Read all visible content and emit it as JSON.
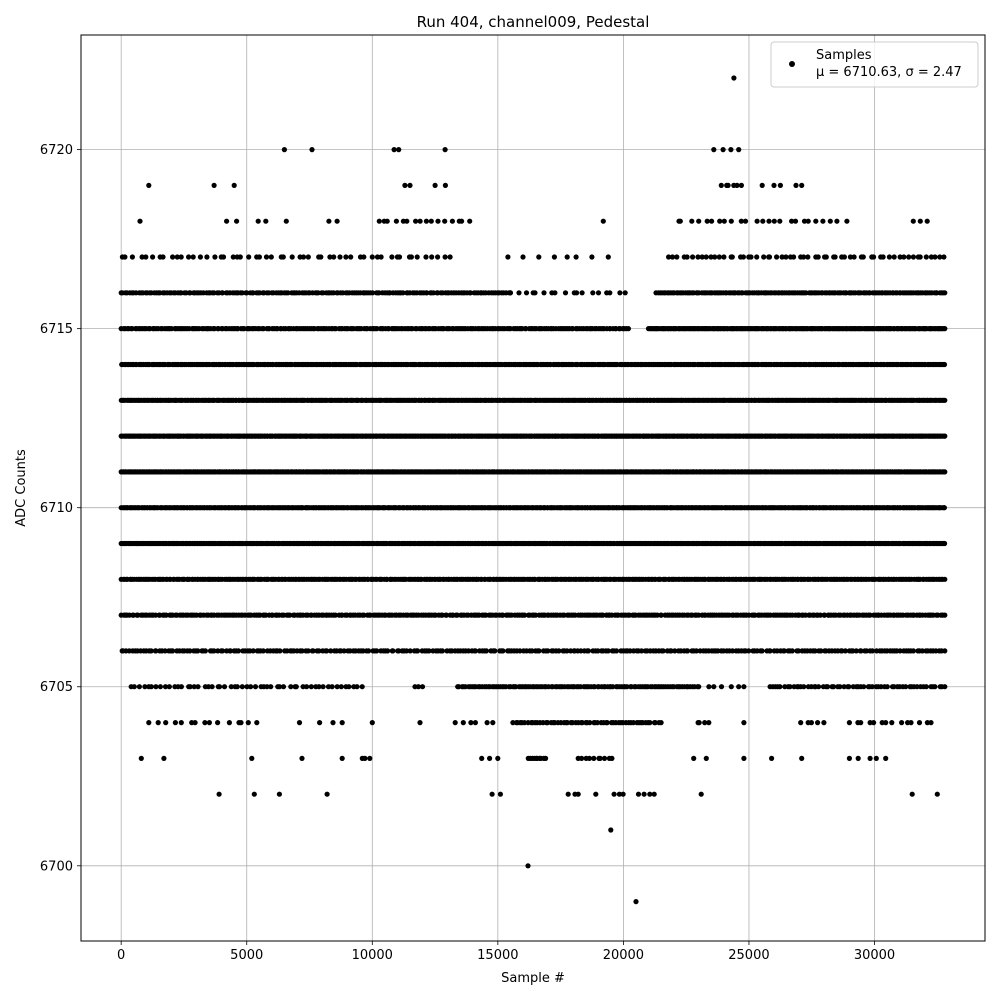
{
  "chart_data": {
    "type": "scatter",
    "title": "Run 404, channel009, Pedestal",
    "xlabel": "Sample #",
    "ylabel": "ADC Counts",
    "xlim": [
      -1600,
      34400
    ],
    "ylim": [
      6697.9,
      6723.2
    ],
    "xticks": [
      0,
      5000,
      10000,
      15000,
      20000,
      25000,
      30000
    ],
    "yticks": [
      6700,
      6705,
      6710,
      6715,
      6720
    ],
    "grid": true,
    "legend": {
      "placement": "top-right",
      "series_name": "Samples",
      "stats": "μ = 6710.63, σ = 2.47"
    },
    "marker_color": "#000000",
    "n_samples": 32768,
    "levels": [
      {
        "y": 6723,
        "runs": []
      },
      {
        "y": 6722,
        "runs": [
          [
            24400,
            24400,
            1
          ]
        ]
      },
      {
        "y": 6721,
        "runs": []
      },
      {
        "y": 6720,
        "runs": [
          [
            6500,
            6500,
            1
          ],
          [
            7600,
            7600,
            1
          ],
          [
            10850,
            11050,
            2
          ],
          [
            12900,
            12900,
            1
          ],
          [
            23600,
            24600,
            4
          ]
        ]
      },
      {
        "y": 6719,
        "runs": [
          [
            1100,
            1100,
            1
          ],
          [
            3700,
            4500,
            2
          ],
          [
            11300,
            11500,
            2
          ],
          [
            12500,
            13100,
            2
          ],
          [
            23900,
            24700,
            6
          ],
          [
            25500,
            27100,
            5
          ]
        ]
      },
      {
        "y": 6718,
        "runs": [
          [
            750,
            750,
            1
          ],
          [
            4200,
            6600,
            5
          ],
          [
            8200,
            8600,
            2
          ],
          [
            10200,
            13900,
            16
          ],
          [
            19200,
            19200,
            1
          ],
          [
            22100,
            28900,
            25
          ],
          [
            31500,
            32100,
            3
          ]
        ]
      },
      {
        "y": 6717,
        "runs": [
          [
            0,
            13100,
            55
          ],
          [
            15400,
            19400,
            8
          ],
          [
            21800,
            32800,
            60
          ]
        ]
      },
      {
        "y": 6716,
        "runs": [
          [
            0,
            15500,
            180
          ],
          [
            15500,
            20100,
            18
          ],
          [
            21300,
            32800,
            160
          ]
        ]
      },
      {
        "y": 6715,
        "runs": [
          [
            0,
            20200,
            260
          ],
          [
            21000,
            32800,
            220
          ]
        ]
      },
      {
        "y": 6714,
        "runs": [
          [
            0,
            32800,
            520
          ]
        ]
      },
      {
        "y": 6713,
        "runs": [
          [
            0,
            32800,
            600
          ]
        ]
      },
      {
        "y": 6712,
        "runs": [
          [
            0,
            32800,
            640
          ]
        ]
      },
      {
        "y": 6711,
        "runs": [
          [
            0,
            32800,
            600
          ]
        ]
      },
      {
        "y": 6710,
        "runs": [
          [
            0,
            32800,
            620
          ]
        ]
      },
      {
        "y": 6709,
        "runs": [
          [
            0,
            32800,
            580
          ]
        ]
      },
      {
        "y": 6708,
        "runs": [
          [
            0,
            32800,
            480
          ]
        ]
      },
      {
        "y": 6707,
        "runs": [
          [
            0,
            32800,
            380
          ]
        ]
      },
      {
        "y": 6706,
        "runs": [
          [
            0,
            32800,
            300
          ]
        ]
      },
      {
        "y": 6705,
        "runs": [
          [
            400,
            9600,
            55
          ],
          [
            11700,
            12000,
            3
          ],
          [
            13400,
            23000,
            120
          ],
          [
            23400,
            24800,
            6
          ],
          [
            25800,
            32800,
            60
          ]
        ]
      },
      {
        "y": 6704,
        "runs": [
          [
            1100,
            5200,
            14
          ],
          [
            5400,
            5400,
            1
          ],
          [
            7100,
            8800,
            4
          ],
          [
            10000,
            10000,
            1
          ],
          [
            11900,
            11900,
            1
          ],
          [
            13300,
            14800,
            6
          ],
          [
            15600,
            21500,
            60
          ],
          [
            22900,
            23400,
            4
          ],
          [
            24800,
            24800,
            1
          ],
          [
            27000,
            28000,
            5
          ],
          [
            29000,
            32300,
            14
          ]
        ]
      },
      {
        "y": 6703,
        "runs": [
          [
            800,
            800,
            1
          ],
          [
            1700,
            1700,
            1
          ],
          [
            5200,
            5200,
            1
          ],
          [
            7200,
            7200,
            1
          ],
          [
            8800,
            8800,
            1
          ],
          [
            9600,
            9900,
            3
          ],
          [
            14300,
            15000,
            3
          ],
          [
            16200,
            16900,
            10
          ],
          [
            18200,
            19600,
            10
          ],
          [
            22800,
            23300,
            2
          ],
          [
            24800,
            24800,
            1
          ],
          [
            25900,
            25900,
            1
          ],
          [
            27100,
            27100,
            1
          ],
          [
            29000,
            30500,
            5
          ]
        ]
      },
      {
        "y": 6702,
        "runs": [
          [
            3900,
            3900,
            1
          ],
          [
            5300,
            5300,
            1
          ],
          [
            6300,
            6300,
            1
          ],
          [
            8200,
            8200,
            1
          ],
          [
            14700,
            15100,
            2
          ],
          [
            17800,
            18200,
            3
          ],
          [
            18900,
            18900,
            1
          ],
          [
            19600,
            20000,
            3
          ],
          [
            20600,
            21300,
            4
          ],
          [
            23100,
            23100,
            1
          ],
          [
            31500,
            31500,
            1
          ],
          [
            32500,
            32500,
            1
          ]
        ]
      },
      {
        "y": 6701,
        "runs": [
          [
            19500,
            19500,
            1
          ]
        ]
      },
      {
        "y": 6700,
        "runs": [
          [
            16200,
            16200,
            1
          ]
        ]
      },
      {
        "y": 6699,
        "runs": [
          [
            20500,
            20500,
            1
          ]
        ]
      }
    ]
  }
}
